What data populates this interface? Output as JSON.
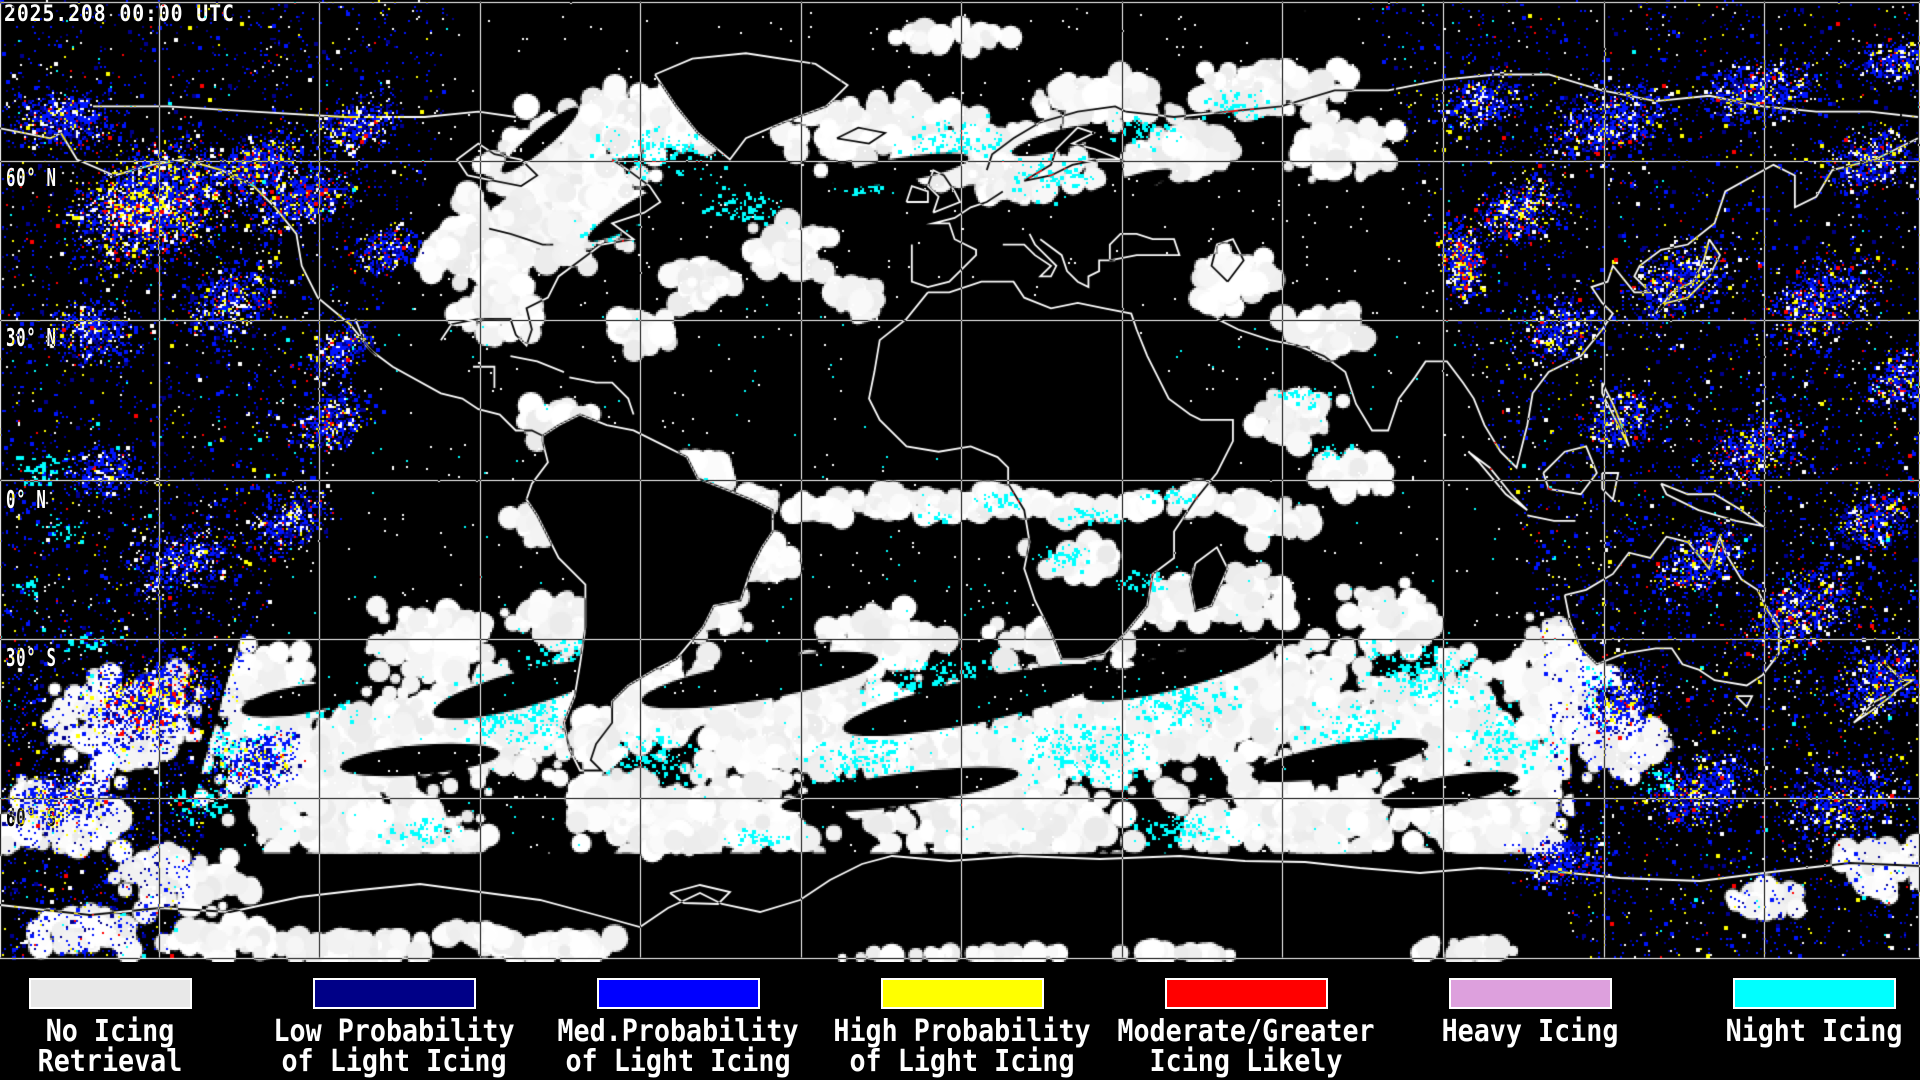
{
  "header": {
    "timestamp": "2025.208 00:00 UTC"
  },
  "map": {
    "latitude_labels": [
      "60° N",
      "30° N",
      "0° N",
      "30° S",
      "60° S"
    ]
  },
  "legend": {
    "items": [
      {
        "color": "#e8e8e8",
        "label_lines": [
          "No Icing",
          "Retrieval"
        ]
      },
      {
        "color": "#000087",
        "label_lines": [
          "Low Probability",
          "of Light Icing"
        ]
      },
      {
        "color": "#0000ff",
        "label_lines": [
          "Med.Probability",
          "of Light Icing"
        ]
      },
      {
        "color": "#ffff00",
        "label_lines": [
          "High Probability",
          "of Light Icing"
        ]
      },
      {
        "color": "#ff0000",
        "label_lines": [
          "Moderate/Greater",
          "Icing Likely"
        ]
      },
      {
        "color": "#dda0dd",
        "label_lines": [
          "Heavy Icing"
        ]
      },
      {
        "color": "#00ffff",
        "label_lines": [
          "Night Icing"
        ]
      }
    ]
  },
  "palette": {
    "background": "#000000",
    "grid_and_coastlines": "#ffffff",
    "cloud_no_retrieval": "#ececec",
    "night_icing": "#00ffff",
    "low_prob": "#000090",
    "med_prob": "#0014ff",
    "high_prob": "#ffff00",
    "moderate_icing": "#ff0000",
    "speckle_white": "#ffffff"
  }
}
